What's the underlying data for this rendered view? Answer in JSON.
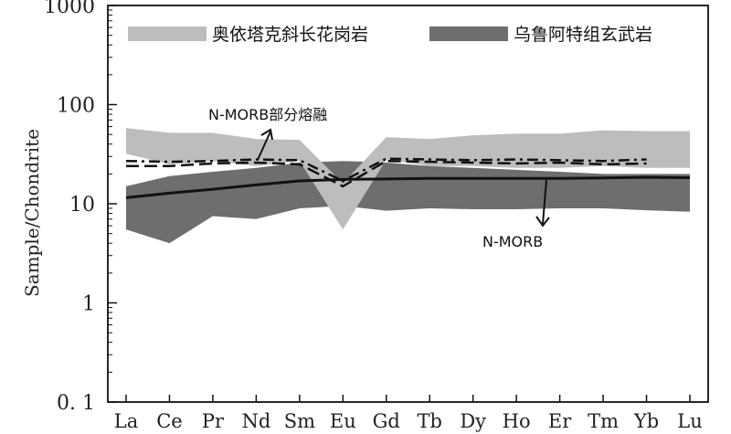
{
  "chart_data": {
    "type": "area",
    "yscale": "log",
    "ylim": [
      0.1,
      1000
    ],
    "ylabel": "Sample/Chondrite",
    "xlabel": "",
    "y_ticks": [
      "0. 1",
      "1",
      "10",
      "100",
      "1000"
    ],
    "y_tick_values": [
      0.1,
      1,
      10,
      100,
      1000
    ],
    "categories": [
      "La",
      "Ce",
      "Pr",
      "Nd",
      "Sm",
      "Eu",
      "Gd",
      "Tb",
      "Dy",
      "Ho",
      "Er",
      "Tm",
      "Yb",
      "Lu"
    ],
    "legend": {
      "position": "top",
      "entries": [
        {
          "label": "奥依塔克斜长花岗岩",
          "color": "#bdbdbd"
        },
        {
          "label": "乌鲁阿特组玄武岩",
          "color": "#6e6e6e"
        }
      ]
    },
    "bands": [
      {
        "name": "乌鲁阿特组玄武岩",
        "color": "#6e6e6e",
        "upper": [
          15,
          19,
          21,
          23,
          26,
          27,
          26,
          24,
          23,
          22,
          21,
          20,
          20,
          20
        ],
        "lower": [
          5.5,
          4.0,
          7.5,
          7.0,
          9.0,
          9.5,
          8.5,
          9.0,
          8.8,
          8.8,
          9.0,
          9.0,
          8.6,
          8.3
        ]
      },
      {
        "name": "奥依塔克斜长花岗岩",
        "color": "#bdbdbd",
        "upper": [
          58,
          52,
          52,
          45,
          44,
          16,
          47,
          45,
          49,
          51,
          51,
          55,
          54,
          54
        ],
        "lower": [
          32,
          25,
          27,
          24,
          27,
          5.5,
          28,
          24,
          24,
          23,
          23,
          24,
          23,
          23
        ]
      }
    ],
    "series": [
      {
        "name": "N-MORB",
        "style": "solid",
        "values": [
          11.5,
          12.8,
          14.0,
          15.5,
          17.0,
          17.6,
          17.8,
          18.0,
          18.0,
          18.0,
          18.0,
          18.2,
          18.5,
          18.3
        ]
      },
      {
        "name": "N-MORB部分熔融",
        "style": "dashdot",
        "values": [
          27,
          26.5,
          27,
          28,
          27.5,
          17,
          28.5,
          28,
          27.5,
          28,
          27.5,
          27,
          28,
          null
        ]
      },
      {
        "name": "N-MORB部分熔融",
        "style": "dashed",
        "values": [
          24,
          24,
          25.5,
          26,
          25,
          15,
          27,
          26.5,
          26,
          25.5,
          26,
          25,
          25.5,
          null
        ]
      }
    ],
    "annotations": [
      {
        "text": "N-MORB部分熔融"
      },
      {
        "text": "N-MORB"
      }
    ],
    "grid": false
  }
}
